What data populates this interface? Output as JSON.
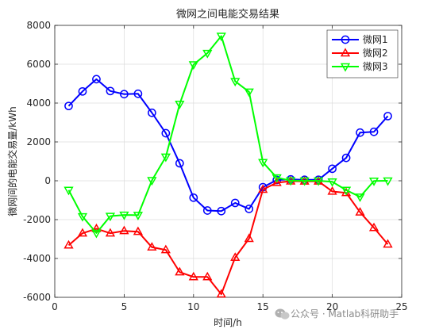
{
  "colors": {
    "series1": "#0000ff",
    "series2": "#ff0000",
    "series3": "#00ff00",
    "grid": "#dcdcdc",
    "axis": "#262626",
    "watermark": "#8a8a8a"
  },
  "watermark": {
    "icon": "wechat-icon",
    "text": "公众号 · Matlab科研助手"
  },
  "chart_data": {
    "type": "line",
    "title": "微网之间电能交易结果",
    "xlabel": "时间/h",
    "ylabel": "微网间的电能交易量/kWh",
    "xlim": [
      0,
      25
    ],
    "ylim": [
      -6000,
      8000
    ],
    "xticks": [
      0,
      5,
      10,
      15,
      20,
      25
    ],
    "yticks": [
      -6000,
      -4000,
      -2000,
      0,
      2000,
      4000,
      6000,
      8000
    ],
    "grid": true,
    "legend_position": "top-right",
    "x": [
      1,
      2,
      3,
      4,
      5,
      6,
      7,
      8,
      9,
      10,
      11,
      12,
      13,
      14,
      15,
      16,
      17,
      18,
      19,
      20,
      21,
      22,
      23,
      24
    ],
    "series": [
      {
        "name": "微网1",
        "marker": "circle",
        "values": [
          3850,
          4600,
          5230,
          4620,
          4460,
          4480,
          3500,
          2450,
          900,
          -870,
          -1530,
          -1560,
          -1140,
          -1450,
          -330,
          40,
          70,
          50,
          50,
          620,
          1180,
          2480,
          2520,
          3330
        ]
      },
      {
        "name": "微网2",
        "marker": "triangle-up",
        "values": [
          -3320,
          -2700,
          -2470,
          -2700,
          -2580,
          -2620,
          -3420,
          -3560,
          -4700,
          -4950,
          -4950,
          -5840,
          -3950,
          -2980,
          -450,
          -100,
          -20,
          -30,
          -30,
          -550,
          -620,
          -1620,
          -2420,
          -3270
        ]
      },
      {
        "name": "微网3",
        "marker": "triangle-down",
        "values": [
          -480,
          -1840,
          -2690,
          -1820,
          -1760,
          -1770,
          20,
          1230,
          3950,
          5980,
          6570,
          7450,
          5120,
          4580,
          950,
          160,
          10,
          0,
          0,
          -50,
          -480,
          -830,
          -10,
          0
        ]
      }
    ]
  }
}
